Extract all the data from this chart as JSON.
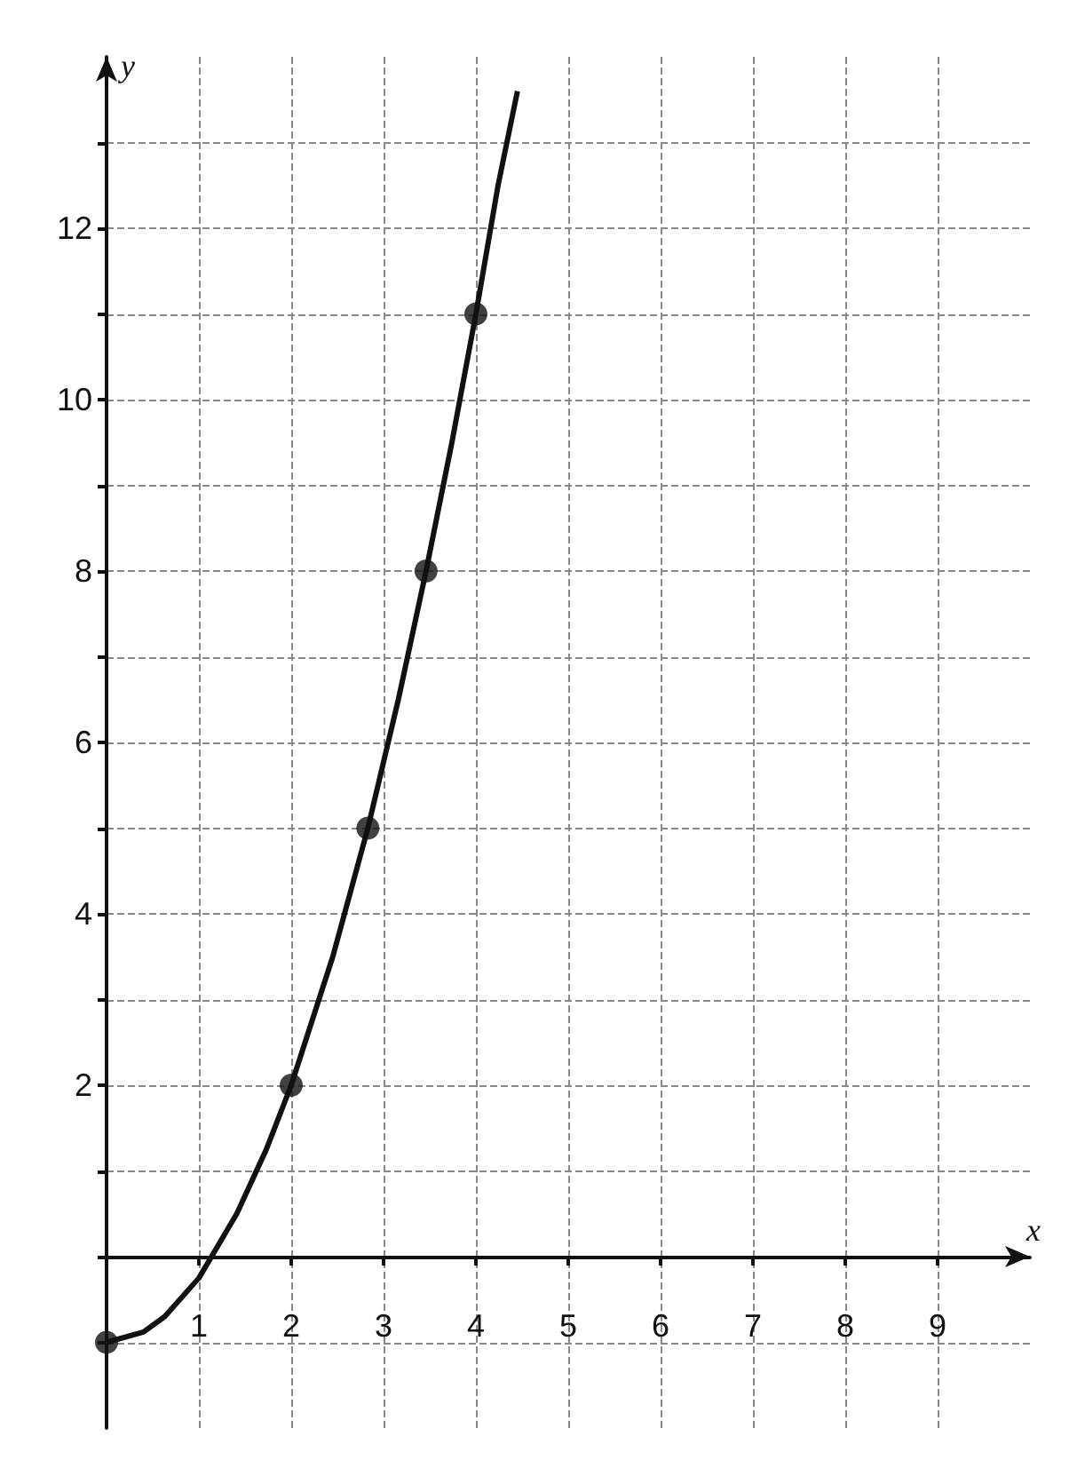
{
  "chart_data": {
    "type": "line",
    "xlabel": "x",
    "ylabel": "y",
    "xlim": [
      0,
      10
    ],
    "ylim": [
      -2,
      14
    ],
    "xticks": [
      1,
      2,
      3,
      4,
      5,
      6,
      7,
      8,
      9
    ],
    "yticks": [
      {
        "value": -1,
        "label": null
      },
      {
        "value": 0,
        "label": null
      },
      {
        "value": 1,
        "label": null
      },
      2,
      {
        "value": 3,
        "label": null
      },
      4,
      {
        "value": 5,
        "label": null
      },
      6,
      {
        "value": 7,
        "label": null
      },
      8,
      {
        "value": 9,
        "label": null
      },
      10,
      {
        "value": 11,
        "label": null
      },
      12,
      {
        "value": 13,
        "label": null
      }
    ],
    "grid": true,
    "series": [
      {
        "type": "line",
        "marker": "none",
        "color": "#111111",
        "x": [
          0,
          0.4,
          0.63,
          1,
          1.41,
          1.73,
          2,
          2.45,
          2.83,
          3.16,
          3.46,
          3.74,
          4,
          4.24,
          4.45
        ],
        "values": [
          -1,
          -0.88,
          -0.7,
          -0.25,
          0.5,
          1.25,
          2,
          3.5,
          5,
          6.5,
          8,
          9.5,
          11,
          12.5,
          13.6
        ]
      },
      {
        "type": "scatter",
        "marker": "circle",
        "color": "#111111",
        "x": [
          0,
          2,
          2.83,
          3.46,
          4
        ],
        "values": [
          -1,
          2,
          5,
          8,
          11
        ]
      }
    ]
  }
}
